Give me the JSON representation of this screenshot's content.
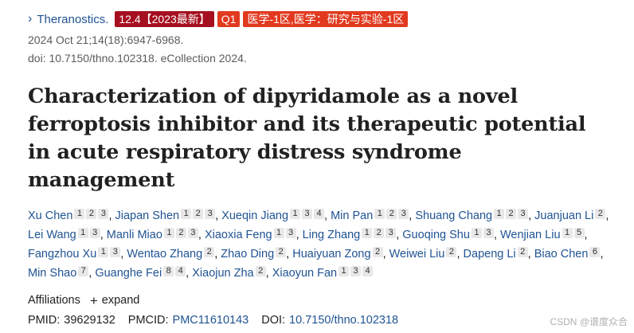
{
  "journal": {
    "name": "Theranostics.",
    "impact_badge": "12.4【2023最新】",
    "quartile_badge": "Q1",
    "category_badge": "医学-1区,医学：研究与实验-1区"
  },
  "citation": {
    "date_line": "2024 Oct 21;14(18):6947-6968.",
    "doi_line": "doi: 10.7150/thno.102318. eCollection 2024."
  },
  "title": "Characterization of dipyridamole as a novel ferroptosis inhibitor and its therapeutic potential in acute respiratory distress syndrome management",
  "authors": [
    {
      "name": "Xu Chen",
      "affs": [
        "1",
        "2",
        "3"
      ]
    },
    {
      "name": "Jiapan Shen",
      "affs": [
        "1",
        "2",
        "3"
      ]
    },
    {
      "name": "Xueqin Jiang",
      "affs": [
        "1",
        "3",
        "4"
      ]
    },
    {
      "name": "Min Pan",
      "affs": [
        "1",
        "2",
        "3"
      ]
    },
    {
      "name": "Shuang Chang",
      "affs": [
        "1",
        "2",
        "3"
      ]
    },
    {
      "name": "Juanjuan Li",
      "affs": [
        "2"
      ]
    },
    {
      "name": "Lei Wang",
      "affs": [
        "1",
        "3"
      ]
    },
    {
      "name": "Manli Miao",
      "affs": [
        "1",
        "2",
        "3"
      ]
    },
    {
      "name": "Xiaoxia Feng",
      "affs": [
        "1",
        "3"
      ]
    },
    {
      "name": "Ling Zhang",
      "affs": [
        "1",
        "2",
        "3"
      ]
    },
    {
      "name": "Guoqing Shu",
      "affs": [
        "1",
        "3"
      ]
    },
    {
      "name": "Wenjian Liu",
      "affs": [
        "1",
        "5"
      ]
    },
    {
      "name": "Fangzhou Xu",
      "affs": [
        "1",
        "3"
      ]
    },
    {
      "name": "Wentao Zhang",
      "affs": [
        "2"
      ]
    },
    {
      "name": "Zhao Ding",
      "affs": [
        "2"
      ]
    },
    {
      "name": "Huaiyuan Zong",
      "affs": [
        "2"
      ]
    },
    {
      "name": "Weiwei Liu",
      "affs": [
        "2"
      ]
    },
    {
      "name": "Dapeng Li",
      "affs": [
        "2"
      ]
    },
    {
      "name": "Biao Chen",
      "affs": [
        "6"
      ]
    },
    {
      "name": "Min Shao",
      "affs": [
        "7"
      ]
    },
    {
      "name": "Guanghe Fei",
      "affs": [
        "8",
        "4"
      ]
    },
    {
      "name": "Xiaojun Zha",
      "affs": [
        "2"
      ]
    },
    {
      "name": "Xiaoyun Fan",
      "affs": [
        "1",
        "3",
        "4"
      ]
    }
  ],
  "affiliations": {
    "label": "Affiliations",
    "expand_label": "expand"
  },
  "ids": {
    "pmid_label": "PMID:",
    "pmid": "39629132",
    "pmcid_label": "PMCID:",
    "pmcid": "PMC11610143",
    "doi_label": "DOI:",
    "doi": "10.7150/thno.102318"
  },
  "watermark": "CSDN @谱度众合",
  "icons": {
    "journal_chevron": "chevron-right-icon",
    "expand": "plus-icon"
  },
  "colors": {
    "link": "#205493",
    "impact_badge": "#a50f20",
    "quartile_badge": "#e23a1f"
  }
}
